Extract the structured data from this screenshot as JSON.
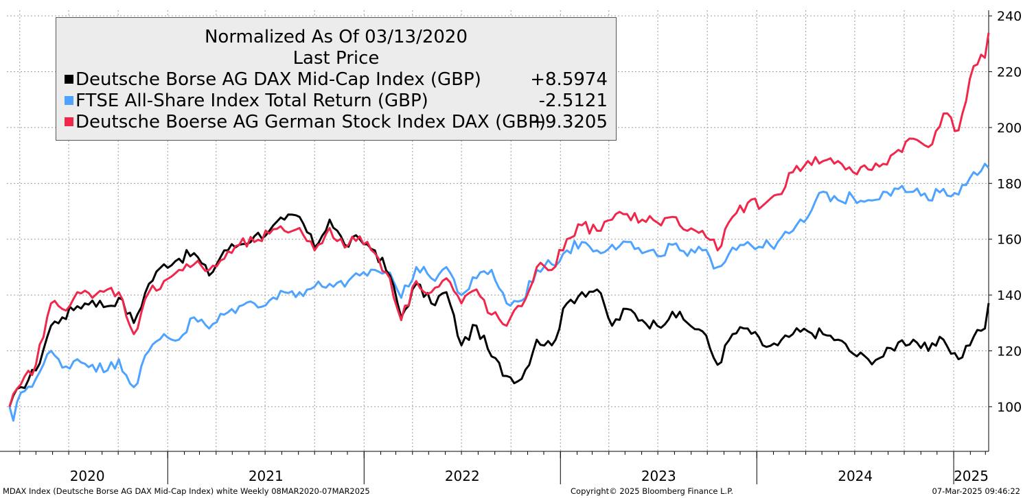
{
  "legend": {
    "title": "Normalized As Of 03/13/2020",
    "subtitle": "Last Price",
    "entries": [
      {
        "name": "Deutsche Borse AG DAX Mid-Cap Index (GBP)",
        "value": "+8.5974",
        "color": "#000000"
      },
      {
        "name": "FTSE All-Share Index Total Return (GBP)",
        "value": "-2.5121",
        "color": "#4da3ff"
      },
      {
        "name": "Deutsche Boerse AG German Stock Index DAX (GBP)",
        "value": "+9.3205",
        "color": "#f0274a"
      }
    ]
  },
  "footer": {
    "left": "MDAX Index (Deutsche Borse AG DAX Mid-Cap Index) white  Weekly 08MAR2020-07MAR2025",
    "center": "Copyright© 2025 Bloomberg Finance L.P.",
    "right": "07-Mar-2025 09:46:22"
  },
  "chart_data": {
    "type": "line",
    "title": "Normalized As Of 03/13/2020",
    "frequency": "Weekly",
    "x_range": [
      "08MAR2020",
      "07MAR2025"
    ],
    "ylim": [
      84,
      242
    ],
    "y_ticks": [
      100,
      120,
      140,
      160,
      180,
      200,
      220,
      240
    ],
    "x_year_labels": [
      "2020",
      "2021",
      "2022",
      "2023",
      "2024",
      "2025"
    ],
    "grid": true,
    "legend_position": "top-left",
    "series": [
      {
        "name": "Deutsche Borse AG DAX Mid-Cap Index (GBP)",
        "color": "#000000",
        "last": 137.1,
        "points": [
          [
            "2020-03-13",
            100
          ],
          [
            "2020-04-03",
            107
          ],
          [
            "2020-05-01",
            113
          ],
          [
            "2020-05-29",
            129
          ],
          [
            "2020-06-19",
            132
          ],
          [
            "2020-07-17",
            136
          ],
          [
            "2020-08-14",
            138
          ],
          [
            "2020-09-11",
            136
          ],
          [
            "2020-10-02",
            139
          ],
          [
            "2020-10-30",
            130
          ],
          [
            "2020-11-27",
            144
          ],
          [
            "2020-12-25",
            151
          ],
          [
            "2021-01-22",
            153
          ],
          [
            "2021-02-19",
            155
          ],
          [
            "2021-03-19",
            147
          ],
          [
            "2021-04-16",
            156
          ],
          [
            "2021-05-14",
            158
          ],
          [
            "2021-06-11",
            161
          ],
          [
            "2021-07-09",
            163
          ],
          [
            "2021-08-06",
            167
          ],
          [
            "2021-09-03",
            168
          ],
          [
            "2021-10-01",
            157
          ],
          [
            "2021-10-29",
            167
          ],
          [
            "2021-11-26",
            158
          ],
          [
            "2021-12-24",
            160
          ],
          [
            "2022-01-21",
            156
          ],
          [
            "2022-02-18",
            147
          ],
          [
            "2022-03-11",
            132
          ],
          [
            "2022-04-08",
            144
          ],
          [
            "2022-05-06",
            137
          ],
          [
            "2022-06-03",
            141
          ],
          [
            "2022-07-01",
            122
          ],
          [
            "2022-07-29",
            129
          ],
          [
            "2022-08-26",
            118
          ],
          [
            "2022-09-23",
            111
          ],
          [
            "2022-10-21",
            110
          ],
          [
            "2022-11-18",
            124
          ],
          [
            "2022-12-16",
            122
          ],
          [
            "2023-01-13",
            137
          ],
          [
            "2023-02-10",
            141
          ],
          [
            "2023-03-10",
            142
          ],
          [
            "2023-04-07",
            129
          ],
          [
            "2023-05-05",
            135
          ],
          [
            "2023-06-02",
            131
          ],
          [
            "2023-06-30",
            129
          ],
          [
            "2023-07-28",
            134
          ],
          [
            "2023-08-25",
            130
          ],
          [
            "2023-09-22",
            127
          ],
          [
            "2023-10-20",
            115
          ],
          [
            "2023-11-17",
            126
          ],
          [
            "2023-12-15",
            128
          ],
          [
            "2024-01-12",
            122
          ],
          [
            "2024-02-09",
            122
          ],
          [
            "2024-03-08",
            126
          ],
          [
            "2024-04-05",
            127
          ],
          [
            "2024-05-03",
            126
          ],
          [
            "2024-05-31",
            124
          ],
          [
            "2024-06-28",
            119
          ],
          [
            "2024-07-26",
            117
          ],
          [
            "2024-08-23",
            118
          ],
          [
            "2024-09-20",
            123
          ],
          [
            "2024-10-18",
            124
          ],
          [
            "2024-11-15",
            120
          ],
          [
            "2024-12-13",
            124
          ],
          [
            "2025-01-10",
            117
          ],
          [
            "2025-02-07",
            125
          ],
          [
            "2025-02-28",
            128
          ],
          [
            "2025-03-07",
            137.1
          ]
        ]
      },
      {
        "name": "FTSE All-Share Index Total Return (GBP)",
        "color": "#4da3ff",
        "last": 185.5,
        "points": [
          [
            "2020-03-13",
            100
          ],
          [
            "2020-03-20",
            95
          ],
          [
            "2020-04-03",
            105
          ],
          [
            "2020-05-01",
            110
          ],
          [
            "2020-05-29",
            120
          ],
          [
            "2020-06-19",
            114
          ],
          [
            "2020-07-17",
            117
          ],
          [
            "2020-08-14",
            115
          ],
          [
            "2020-09-11",
            113
          ],
          [
            "2020-10-02",
            117
          ],
          [
            "2020-10-30",
            107
          ],
          [
            "2020-11-27",
            120
          ],
          [
            "2020-12-25",
            126
          ],
          [
            "2021-01-22",
            124
          ],
          [
            "2021-02-19",
            132
          ],
          [
            "2021-03-19",
            128
          ],
          [
            "2021-04-16",
            133
          ],
          [
            "2021-05-14",
            136
          ],
          [
            "2021-06-11",
            137
          ],
          [
            "2021-07-09",
            138
          ],
          [
            "2021-08-06",
            141
          ],
          [
            "2021-09-03",
            141
          ],
          [
            "2021-10-01",
            143
          ],
          [
            "2021-10-29",
            144
          ],
          [
            "2021-11-26",
            143
          ],
          [
            "2021-12-24",
            147
          ],
          [
            "2022-01-21",
            149
          ],
          [
            "2022-02-18",
            148
          ],
          [
            "2022-03-11",
            139
          ],
          [
            "2022-04-08",
            150
          ],
          [
            "2022-05-06",
            146
          ],
          [
            "2022-06-03",
            150
          ],
          [
            "2022-07-01",
            140
          ],
          [
            "2022-07-29",
            146
          ],
          [
            "2022-08-26",
            149
          ],
          [
            "2022-09-23",
            137
          ],
          [
            "2022-10-21",
            138
          ],
          [
            "2022-11-18",
            149
          ],
          [
            "2022-12-16",
            151
          ],
          [
            "2023-01-13",
            156
          ],
          [
            "2023-02-10",
            159
          ],
          [
            "2023-03-10",
            156
          ],
          [
            "2023-04-07",
            158
          ],
          [
            "2023-05-05",
            159
          ],
          [
            "2023-06-02",
            155
          ],
          [
            "2023-06-30",
            154
          ],
          [
            "2023-07-28",
            158
          ],
          [
            "2023-08-25",
            154
          ],
          [
            "2023-09-22",
            156
          ],
          [
            "2023-10-20",
            150
          ],
          [
            "2023-11-17",
            157
          ],
          [
            "2023-12-15",
            159
          ],
          [
            "2024-01-12",
            157
          ],
          [
            "2024-02-09",
            159
          ],
          [
            "2024-03-08",
            163
          ],
          [
            "2024-04-05",
            168
          ],
          [
            "2024-05-03",
            177
          ],
          [
            "2024-05-31",
            174
          ],
          [
            "2024-06-28",
            175
          ],
          [
            "2024-07-26",
            174
          ],
          [
            "2024-08-23",
            177
          ],
          [
            "2024-09-20",
            178
          ],
          [
            "2024-10-18",
            177
          ],
          [
            "2024-11-15",
            174
          ],
          [
            "2024-12-13",
            178
          ],
          [
            "2025-01-10",
            176
          ],
          [
            "2025-02-07",
            184
          ],
          [
            "2025-02-28",
            187
          ],
          [
            "2025-03-07",
            185.5
          ]
        ]
      },
      {
        "name": "Deutsche Boerse AG German Stock Index DAX (GBP)",
        "color": "#f0274a",
        "last": 234,
        "points": [
          [
            "2020-03-13",
            100
          ],
          [
            "2020-04-03",
            108
          ],
          [
            "2020-05-01",
            115
          ],
          [
            "2020-05-29",
            137
          ],
          [
            "2020-06-19",
            135
          ],
          [
            "2020-07-17",
            141
          ],
          [
            "2020-08-14",
            139
          ],
          [
            "2020-09-11",
            142
          ],
          [
            "2020-10-02",
            141
          ],
          [
            "2020-10-30",
            126
          ],
          [
            "2020-11-27",
            141
          ],
          [
            "2020-12-25",
            145
          ],
          [
            "2021-01-22",
            149
          ],
          [
            "2021-02-19",
            151
          ],
          [
            "2021-03-19",
            149
          ],
          [
            "2021-04-16",
            153
          ],
          [
            "2021-05-14",
            158
          ],
          [
            "2021-06-11",
            159
          ],
          [
            "2021-07-09",
            162
          ],
          [
            "2021-08-06",
            163
          ],
          [
            "2021-09-03",
            164
          ],
          [
            "2021-10-01",
            156
          ],
          [
            "2021-10-29",
            164
          ],
          [
            "2021-11-26",
            157
          ],
          [
            "2021-12-24",
            161
          ],
          [
            "2022-01-21",
            155
          ],
          [
            "2022-02-18",
            146
          ],
          [
            "2022-03-11",
            131
          ],
          [
            "2022-04-08",
            145
          ],
          [
            "2022-05-06",
            141
          ],
          [
            "2022-06-03",
            146
          ],
          [
            "2022-07-01",
            137
          ],
          [
            "2022-07-29",
            142
          ],
          [
            "2022-08-26",
            133
          ],
          [
            "2022-09-23",
            129
          ],
          [
            "2022-10-21",
            136
          ],
          [
            "2022-11-18",
            150
          ],
          [
            "2022-12-16",
            149
          ],
          [
            "2023-01-13",
            160
          ],
          [
            "2023-02-10",
            165
          ],
          [
            "2023-03-10",
            163
          ],
          [
            "2023-04-07",
            167
          ],
          [
            "2023-05-05",
            169
          ],
          [
            "2023-06-02",
            167
          ],
          [
            "2023-06-30",
            166
          ],
          [
            "2023-07-28",
            168
          ],
          [
            "2023-08-25",
            163
          ],
          [
            "2023-09-22",
            163
          ],
          [
            "2023-10-20",
            156
          ],
          [
            "2023-11-17",
            168
          ],
          [
            "2023-12-15",
            173
          ],
          [
            "2024-01-12",
            172
          ],
          [
            "2024-02-09",
            176
          ],
          [
            "2024-03-08",
            184
          ],
          [
            "2024-04-05",
            188
          ],
          [
            "2024-05-03",
            188
          ],
          [
            "2024-05-31",
            188
          ],
          [
            "2024-06-28",
            184
          ],
          [
            "2024-07-26",
            185
          ],
          [
            "2024-08-23",
            187
          ],
          [
            "2024-09-20",
            192
          ],
          [
            "2024-10-18",
            196
          ],
          [
            "2024-11-15",
            193
          ],
          [
            "2024-12-13",
            205
          ],
          [
            "2025-01-10",
            199
          ],
          [
            "2025-02-07",
            222
          ],
          [
            "2025-02-28",
            225
          ],
          [
            "2025-03-07",
            234
          ]
        ]
      }
    ]
  }
}
